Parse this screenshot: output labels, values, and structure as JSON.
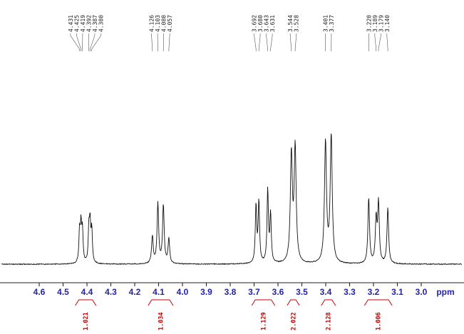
{
  "chart_data": {
    "type": "line",
    "kind": "1H NMR spectrum",
    "xlabel": "ppm",
    "x_axis": {
      "ticks": [
        "4.6",
        "4.5",
        "4.4",
        "4.3",
        "4.2",
        "4.1",
        "4.0",
        "3.9",
        "3.8",
        "3.7",
        "3.6",
        "3.5",
        "3.4",
        "3.3",
        "3.2",
        "3.1",
        "3.0"
      ],
      "unit_label": "ppm"
    },
    "groups": [
      {
        "integral": "1.021",
        "peaks": [
          {
            "ppm": 4.431,
            "label": "4.431",
            "rel_intensity": 0.24,
            "hwhm_ppm": 0.0032
          },
          {
            "ppm": 4.425,
            "label": "4.425",
            "rel_intensity": 0.27,
            "hwhm_ppm": 0.0032
          },
          {
            "ppm": 4.419,
            "label": "4.419",
            "rel_intensity": 0.24,
            "hwhm_ppm": 0.0032
          },
          {
            "ppm": 4.392,
            "label": "4.392",
            "rel_intensity": 0.25,
            "hwhm_ppm": 0.0032
          },
          {
            "ppm": 4.387,
            "label": "4.387",
            "rel_intensity": 0.285,
            "hwhm_ppm": 0.0032
          },
          {
            "ppm": 4.38,
            "label": "4.380",
            "rel_intensity": 0.245,
            "hwhm_ppm": 0.0032
          }
        ]
      },
      {
        "integral": "1.034",
        "peaks": [
          {
            "ppm": 4.126,
            "label": "4.126",
            "rel_intensity": 0.21,
            "hwhm_ppm": 0.004
          },
          {
            "ppm": 4.103,
            "label": "4.103",
            "rel_intensity": 0.46,
            "hwhm_ppm": 0.004
          },
          {
            "ppm": 4.08,
            "label": "4.080",
            "rel_intensity": 0.45,
            "hwhm_ppm": 0.004
          },
          {
            "ppm": 4.057,
            "label": "4.057",
            "rel_intensity": 0.19,
            "hwhm_ppm": 0.004
          }
        ]
      },
      {
        "integral": "1.129",
        "peaks": [
          {
            "ppm": 3.692,
            "label": "3.692",
            "rel_intensity": 0.44,
            "hwhm_ppm": 0.0035
          },
          {
            "ppm": 3.68,
            "label": "3.680",
            "rel_intensity": 0.47,
            "hwhm_ppm": 0.0035
          },
          {
            "ppm": 3.643,
            "label": "3.643",
            "rel_intensity": 0.56,
            "hwhm_ppm": 0.0035
          },
          {
            "ppm": 3.631,
            "label": "3.631",
            "rel_intensity": 0.37,
            "hwhm_ppm": 0.0035
          }
        ]
      },
      {
        "integral": "2.022",
        "peaks": [
          {
            "ppm": 3.544,
            "label": "3.544",
            "rel_intensity": 0.83,
            "hwhm_ppm": 0.005
          },
          {
            "ppm": 3.528,
            "label": "3.528",
            "rel_intensity": 0.88,
            "hwhm_ppm": 0.005
          }
        ]
      },
      {
        "integral": "2.128",
        "peaks": [
          {
            "ppm": 3.401,
            "label": "3.401",
            "rel_intensity": 0.93,
            "hwhm_ppm": 0.005
          },
          {
            "ppm": 3.377,
            "label": "3.377",
            "rel_intensity": 0.98,
            "hwhm_ppm": 0.005
          }
        ]
      },
      {
        "integral": "1.006",
        "peaks": [
          {
            "ppm": 3.22,
            "label": "3.220",
            "rel_intensity": 0.5,
            "hwhm_ppm": 0.004
          },
          {
            "ppm": 3.189,
            "label": "3.189",
            "rel_intensity": 0.33,
            "hwhm_ppm": 0.004
          },
          {
            "ppm": 3.179,
            "label": "3.179",
            "rel_intensity": 0.46,
            "hwhm_ppm": 0.004
          },
          {
            "ppm": 3.14,
            "label": "3.140",
            "rel_intensity": 0.43,
            "hwhm_ppm": 0.004
          }
        ]
      }
    ],
    "colors": {
      "trace": "#111111",
      "axis_line": "#222222",
      "axis_labels": "#2222aa",
      "peak_labels": "#222222",
      "connector_lines": "#555555",
      "integrals": "#cc0000"
    }
  }
}
